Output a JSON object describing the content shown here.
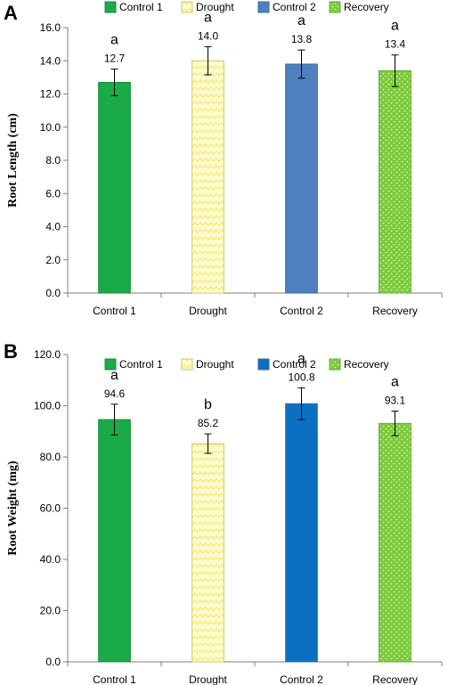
{
  "colors": {
    "control1": "#1aaa48",
    "drought_fill": "#fffbd0",
    "drought_line": "#f2ea68",
    "drought_border": "#d8d070",
    "control2_a": "#4f7fbe",
    "control2_b": "#0b6fc2",
    "recovery": "#7ccb3a",
    "recovery_dot": "#d9f2b8"
  },
  "chart_data": [
    {
      "type": "bar",
      "panel_label": "A",
      "ylabel": "Root Length (cm)",
      "categories": [
        "Control 1",
        "Drought",
        "Control 2",
        "Recovery"
      ],
      "values": [
        12.7,
        14.0,
        13.8,
        13.4
      ],
      "value_labels": [
        "12.7",
        "14.0",
        "13.8",
        "13.4"
      ],
      "error": [
        0.8,
        0.85,
        0.85,
        0.95
      ],
      "significance": [
        "a",
        "a",
        "a",
        "a"
      ],
      "ylim": [
        0,
        16
      ],
      "yticks": [
        "0.0",
        "2.0",
        "4.0",
        "6.0",
        "8.0",
        "10.0",
        "12.0",
        "14.0",
        "16.0"
      ],
      "legend": [
        "Control 1",
        "Drought",
        "Control 2",
        "Recovery"
      ],
      "legend_position": "top",
      "grid": false
    },
    {
      "type": "bar",
      "panel_label": "B",
      "ylabel": "Root Weight (mg)",
      "categories": [
        "Control 1",
        "Drought",
        "Control 2",
        "Recovery"
      ],
      "values": [
        94.6,
        85.2,
        100.8,
        93.1
      ],
      "value_labels": [
        "94.6",
        "85.2",
        "100.8",
        "93.1"
      ],
      "error": [
        6.0,
        3.8,
        6.2,
        4.8
      ],
      "significance": [
        "a",
        "b",
        "a",
        "a"
      ],
      "ylim": [
        0,
        120
      ],
      "yticks": [
        "0.0",
        "20.0",
        "40.0",
        "60.0",
        "80.0",
        "100.0",
        "120.0"
      ],
      "legend": [
        "Control 1",
        "Drought",
        "Control 2",
        "Recovery"
      ],
      "legend_position": "top",
      "grid": false
    }
  ]
}
